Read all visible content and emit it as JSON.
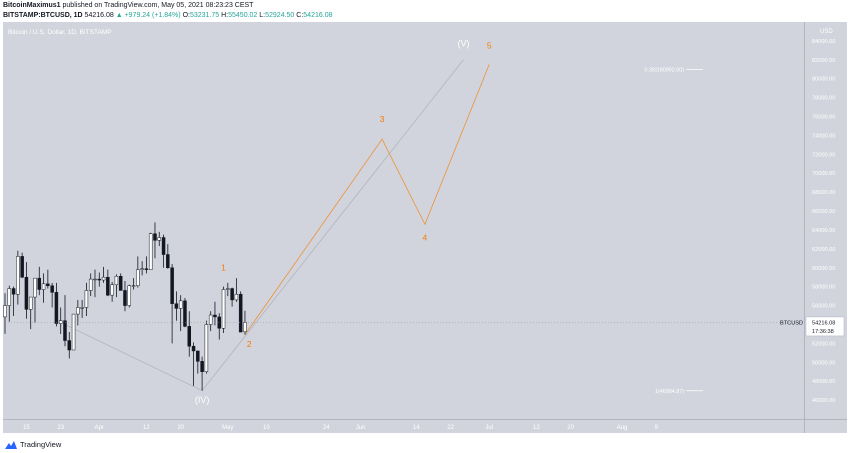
{
  "header": {
    "author": "BitcoinMaximus1",
    "published_text": " published on TradingView.com, May 05, 2021 08:23:23 CEST",
    "symbol": "BITSTAMP:BTCUSD, 1D",
    "last": "54216.08",
    "change": "▲ +979.24 (+1.84%)",
    "o_label": "O:",
    "o": "53231.75",
    "h_label": "H:",
    "h": "55450.02",
    "l_label": "L:",
    "l": "52924.50",
    "c_label": "C:",
    "c": "54216.08"
  },
  "footer": {
    "brand": "TradingView"
  },
  "chart_data": {
    "type": "candlestick",
    "title": "Bitcoin / U.S. Dollar, 1D, BITSTAMP",
    "currency": "USD",
    "ylim": [
      44000,
      86000
    ],
    "yticks": [
      46000,
      48000,
      50000,
      52000,
      54000,
      56000,
      58000,
      60000,
      62000,
      64000,
      66000,
      68000,
      70000,
      72000,
      74000,
      76000,
      78000,
      80000,
      82000,
      84000
    ],
    "xlim": [
      "2021-03-10",
      "2021-09-12"
    ],
    "xticks": [
      {
        "date": "2021-03-15",
        "label": "15"
      },
      {
        "date": "2021-03-23",
        "label": "23"
      },
      {
        "date": "2021-04-01",
        "label": "Apr"
      },
      {
        "date": "2021-04-12",
        "label": "12"
      },
      {
        "date": "2021-04-20",
        "label": "20"
      },
      {
        "date": "2021-05-01",
        "label": "May"
      },
      {
        "date": "2021-05-10",
        "label": "10"
      },
      {
        "date": "2021-05-24",
        "label": "24"
      },
      {
        "date": "2021-06-01",
        "label": "Jun"
      },
      {
        "date": "2021-06-14",
        "label": "14"
      },
      {
        "date": "2021-06-22",
        "label": "22"
      },
      {
        "date": "2021-07-01",
        "label": "Jul"
      },
      {
        "date": "2021-07-12",
        "label": "12"
      },
      {
        "date": "2021-07-20",
        "label": "20"
      },
      {
        "date": "2021-08-01",
        "label": "Aug"
      },
      {
        "date": "2021-08-09",
        "label": "9"
      }
    ],
    "candles": [
      {
        "d": "2021-03-10",
        "o": 54800,
        "h": 57300,
        "l": 53000,
        "c": 56000
      },
      {
        "d": "2021-03-11",
        "o": 56000,
        "h": 58100,
        "l": 54300,
        "c": 57800
      },
      {
        "d": "2021-03-12",
        "o": 57800,
        "h": 58000,
        "l": 54900,
        "c": 57200
      },
      {
        "d": "2021-03-13",
        "o": 57200,
        "h": 61800,
        "l": 56100,
        "c": 61200
      },
      {
        "d": "2021-03-14",
        "o": 61200,
        "h": 61600,
        "l": 58900,
        "c": 59000
      },
      {
        "d": "2021-03-15",
        "o": 59000,
        "h": 60600,
        "l": 54600,
        "c": 55600
      },
      {
        "d": "2021-03-16",
        "o": 55600,
        "h": 56900,
        "l": 53500,
        "c": 56900
      },
      {
        "d": "2021-03-17",
        "o": 56900,
        "h": 58900,
        "l": 54200,
        "c": 58900
      },
      {
        "d": "2021-03-18",
        "o": 58900,
        "h": 60100,
        "l": 57100,
        "c": 57700
      },
      {
        "d": "2021-03-19",
        "o": 57700,
        "h": 59400,
        "l": 56300,
        "c": 58300
      },
      {
        "d": "2021-03-20",
        "o": 58300,
        "h": 59800,
        "l": 57800,
        "c": 58100
      },
      {
        "d": "2021-03-21",
        "o": 58100,
        "h": 58400,
        "l": 55800,
        "c": 57400
      },
      {
        "d": "2021-03-22",
        "o": 57400,
        "h": 58400,
        "l": 53800,
        "c": 54100
      },
      {
        "d": "2021-03-23",
        "o": 54100,
        "h": 55800,
        "l": 53000,
        "c": 54400
      },
      {
        "d": "2021-03-24",
        "o": 54400,
        "h": 57100,
        "l": 51700,
        "c": 52300
      },
      {
        "d": "2021-03-25",
        "o": 52300,
        "h": 53200,
        "l": 50400,
        "c": 51300
      },
      {
        "d": "2021-03-26",
        "o": 51300,
        "h": 55100,
        "l": 51300,
        "c": 55100
      },
      {
        "d": "2021-03-27",
        "o": 55100,
        "h": 56600,
        "l": 53900,
        "c": 55800
      },
      {
        "d": "2021-03-28",
        "o": 55800,
        "h": 56600,
        "l": 54700,
        "c": 55800
      },
      {
        "d": "2021-03-29",
        "o": 55800,
        "h": 58400,
        "l": 54900,
        "c": 57600
      },
      {
        "d": "2021-03-30",
        "o": 57600,
        "h": 59400,
        "l": 57000,
        "c": 58800
      },
      {
        "d": "2021-03-31",
        "o": 58800,
        "h": 59800,
        "l": 56900,
        "c": 58800
      },
      {
        "d": "2021-04-01",
        "o": 58800,
        "h": 59500,
        "l": 58000,
        "c": 58700
      },
      {
        "d": "2021-04-02",
        "o": 58700,
        "h": 60100,
        "l": 58400,
        "c": 59000
      },
      {
        "d": "2021-04-03",
        "o": 59000,
        "h": 59800,
        "l": 57000,
        "c": 57100
      },
      {
        "d": "2021-04-04",
        "o": 57100,
        "h": 58500,
        "l": 56400,
        "c": 58200
      },
      {
        "d": "2021-04-05",
        "o": 58200,
        "h": 59300,
        "l": 56900,
        "c": 59100
      },
      {
        "d": "2021-04-06",
        "o": 59100,
        "h": 59400,
        "l": 57600,
        "c": 57600
      },
      {
        "d": "2021-04-07",
        "o": 57600,
        "h": 58600,
        "l": 55400,
        "c": 56000
      },
      {
        "d": "2021-04-08",
        "o": 56000,
        "h": 58200,
        "l": 55800,
        "c": 58100
      },
      {
        "d": "2021-04-09",
        "o": 58100,
        "h": 58900,
        "l": 57700,
        "c": 58100
      },
      {
        "d": "2021-04-10",
        "o": 58100,
        "h": 61200,
        "l": 57900,
        "c": 59800
      },
      {
        "d": "2021-04-11",
        "o": 59800,
        "h": 60700,
        "l": 59200,
        "c": 59900
      },
      {
        "d": "2021-04-12",
        "o": 59900,
        "h": 61200,
        "l": 59400,
        "c": 59800
      },
      {
        "d": "2021-04-13",
        "o": 59800,
        "h": 63700,
        "l": 59800,
        "c": 63600
      },
      {
        "d": "2021-04-14",
        "o": 63600,
        "h": 64800,
        "l": 61000,
        "c": 62900
      },
      {
        "d": "2021-04-15",
        "o": 62900,
        "h": 63800,
        "l": 62300,
        "c": 63200
      },
      {
        "d": "2021-04-16",
        "o": 63200,
        "h": 63500,
        "l": 60000,
        "c": 61400
      },
      {
        "d": "2021-04-17",
        "o": 61400,
        "h": 62500,
        "l": 59900,
        "c": 60000
      },
      {
        "d": "2021-04-18",
        "o": 60000,
        "h": 60400,
        "l": 52000,
        "c": 56200
      },
      {
        "d": "2021-04-19",
        "o": 56200,
        "h": 57500,
        "l": 54400,
        "c": 55700
      },
      {
        "d": "2021-04-20",
        "o": 55700,
        "h": 57100,
        "l": 53300,
        "c": 56500
      },
      {
        "d": "2021-04-21",
        "o": 56500,
        "h": 56800,
        "l": 53700,
        "c": 53800
      },
      {
        "d": "2021-04-22",
        "o": 53800,
        "h": 55400,
        "l": 50600,
        "c": 51700
      },
      {
        "d": "2021-04-23",
        "o": 51700,
        "h": 52100,
        "l": 47500,
        "c": 51200
      },
      {
        "d": "2021-04-24",
        "o": 51200,
        "h": 51200,
        "l": 48800,
        "c": 50100
      },
      {
        "d": "2021-04-25",
        "o": 50100,
        "h": 50600,
        "l": 47000,
        "c": 49000
      },
      {
        "d": "2021-04-26",
        "o": 49000,
        "h": 54400,
        "l": 48800,
        "c": 54000
      },
      {
        "d": "2021-04-27",
        "o": 54000,
        "h": 55400,
        "l": 53300,
        "c": 55000
      },
      {
        "d": "2021-04-28",
        "o": 55000,
        "h": 56400,
        "l": 53900,
        "c": 54800
      },
      {
        "d": "2021-04-29",
        "o": 54800,
        "h": 55200,
        "l": 52400,
        "c": 53600
      },
      {
        "d": "2021-04-30",
        "o": 53600,
        "h": 58000,
        "l": 53100,
        "c": 57700
      },
      {
        "d": "2021-05-01",
        "o": 57700,
        "h": 58400,
        "l": 57000,
        "c": 57800
      },
      {
        "d": "2021-05-02",
        "o": 57800,
        "h": 57900,
        "l": 55900,
        "c": 56600
      },
      {
        "d": "2021-05-03",
        "o": 56600,
        "h": 58900,
        "l": 56400,
        "c": 57200
      },
      {
        "d": "2021-05-04",
        "o": 57200,
        "h": 57500,
        "l": 53200,
        "c": 53200
      },
      {
        "d": "2021-05-05",
        "o": 53231.75,
        "h": 55450.02,
        "l": 52924.5,
        "c": 54216.08
      }
    ],
    "projection_path": [
      {
        "d": "2021-05-05",
        "v": 52924.5
      },
      {
        "d": "2021-06-06",
        "v": 73600
      },
      {
        "d": "2021-06-16",
        "v": 64600
      },
      {
        "d": "2021-07-01",
        "v": 81500
      }
    ],
    "trend_line": [
      {
        "d": "2021-03-24",
        "v": 54000
      },
      {
        "d": "2021-04-25",
        "v": 47000
      },
      {
        "d": "2021-06-25",
        "v": 82000
      }
    ],
    "waves": [
      {
        "label": "1",
        "d": "2021-04-30",
        "v": 59700,
        "color": "#f57c00"
      },
      {
        "label": "2",
        "d": "2021-05-06",
        "v": 51600,
        "color": "#f57c00"
      },
      {
        "label": "3",
        "d": "2021-06-06",
        "v": 75400,
        "color": "#f57c00"
      },
      {
        "label": "4",
        "d": "2021-06-16",
        "v": 62900,
        "color": "#f57c00"
      },
      {
        "label": "5",
        "d": "2021-07-01",
        "v": 83200,
        "color": "#f57c00"
      },
      {
        "label": "(IV)",
        "d": "2021-04-25",
        "v": 45700,
        "color": "#ffffff"
      },
      {
        "label": "(V)",
        "d": "2021-06-25",
        "v": 83400,
        "color": "#ffffff"
      }
    ],
    "fib_levels": [
      {
        "label": "0.382(80992.00)",
        "value": 80992
      },
      {
        "label": "1(46984.87)",
        "value": 46984.87
      }
    ],
    "price_label": {
      "symbol": "BTCUSD",
      "price": "54216.08",
      "countdown": "17:36:38",
      "value": 54216.08
    },
    "colors": {
      "background": "#d1d4dc",
      "up": "#ffffff",
      "down": "#131722",
      "projection": "#f57c00",
      "trend": "#b2b5be",
      "fib": "#ffffff"
    }
  }
}
